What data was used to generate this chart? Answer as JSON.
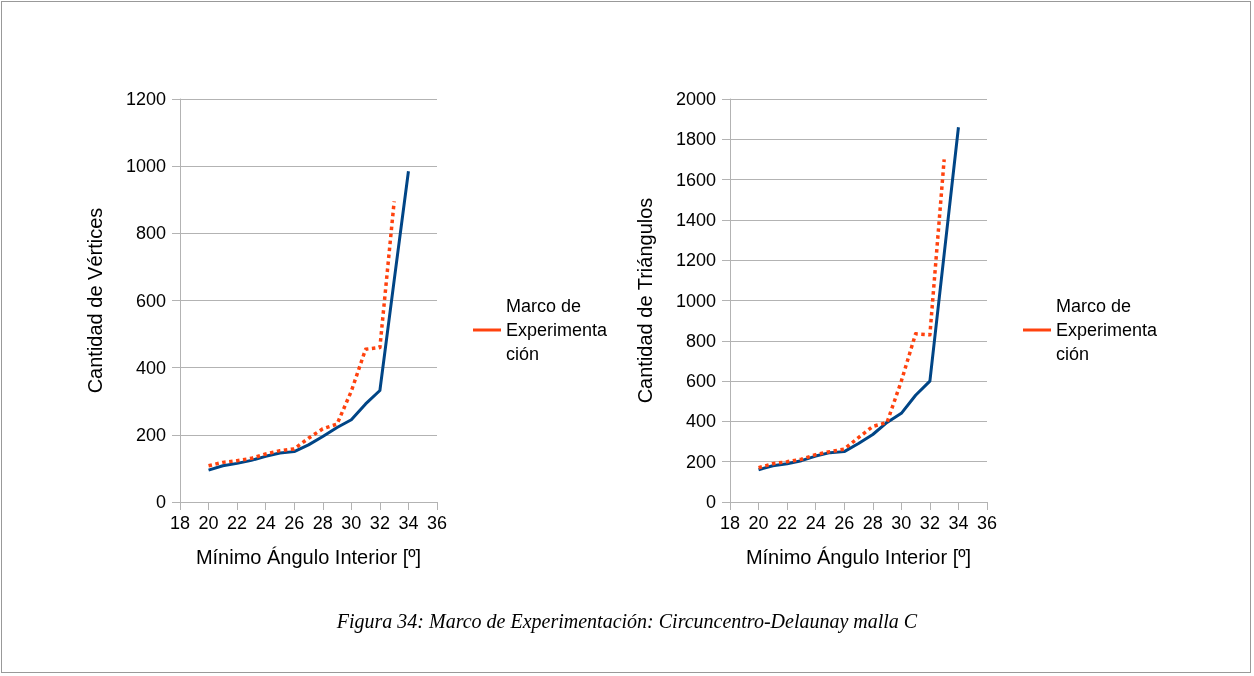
{
  "chart_data": [
    {
      "type": "line",
      "xlabel": "Mínimo Ángulo Interior [º]",
      "ylabel": "Cantidad de Vértices",
      "xlim": [
        18,
        36
      ],
      "xticks": [
        18,
        20,
        22,
        24,
        26,
        28,
        30,
        32,
        34,
        36
      ],
      "ylim": [
        0,
        1200
      ],
      "yticks": [
        0,
        200,
        400,
        600,
        800,
        1000,
        1200
      ],
      "grid": "y",
      "legend": "right",
      "marker": "none",
      "annotations": [
        "Figura 34: Marco de Experimentación: Circuncentro-Delaunay malla C"
      ],
      "series": [
        {
          "color": "#004586",
          "line_style": "solid",
          "x": [
            20,
            21,
            22,
            23,
            24,
            25,
            26,
            27,
            28,
            29,
            30,
            31,
            32,
            33,
            34
          ],
          "values": [
            95,
            108,
            115,
            124,
            136,
            146,
            150,
            170,
            195,
            222,
            245,
            292,
            332,
            660,
            985
          ]
        },
        {
          "name": "Marco de Experimentación",
          "color": "#ff420e",
          "line_style": "dotted",
          "x": [
            20,
            21,
            22,
            23,
            24,
            25,
            26,
            27,
            28,
            29,
            30,
            31,
            32,
            33
          ],
          "values": [
            108,
            118,
            123,
            130,
            143,
            153,
            158,
            190,
            218,
            232,
            330,
            455,
            460,
            895
          ]
        }
      ]
    },
    {
      "type": "line",
      "xlabel": "Mínimo Ángulo Interior [º]",
      "ylabel": "Cantidad de Triángulos",
      "xlim": [
        18,
        36
      ],
      "xticks": [
        18,
        20,
        22,
        24,
        26,
        28,
        30,
        32,
        34,
        36
      ],
      "ylim": [
        0,
        2000
      ],
      "yticks": [
        0,
        200,
        400,
        600,
        800,
        1000,
        1200,
        1400,
        1600,
        1800,
        2000
      ],
      "grid": "y",
      "legend": "right",
      "marker": "none",
      "series": [
        {
          "color": "#004586",
          "line_style": "solid",
          "x": [
            20,
            21,
            22,
            23,
            24,
            25,
            26,
            27,
            28,
            29,
            30,
            31,
            32,
            33,
            34
          ],
          "values": [
            160,
            180,
            190,
            205,
            228,
            245,
            250,
            290,
            335,
            395,
            440,
            530,
            600,
            1230,
            1860
          ]
        },
        {
          "name": "Marco de Experimentación",
          "color": "#ff420e",
          "line_style": "dotted",
          "x": [
            20,
            21,
            22,
            23,
            24,
            25,
            26,
            27,
            28,
            29,
            30,
            31,
            32,
            33
          ],
          "values": [
            170,
            190,
            200,
            212,
            235,
            250,
            262,
            320,
            375,
            395,
            600,
            835,
            830,
            1700
          ]
        }
      ]
    }
  ]
}
